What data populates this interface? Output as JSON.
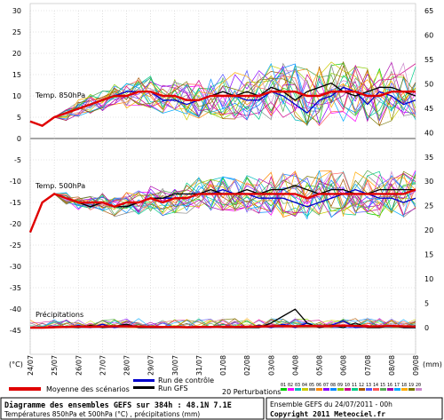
{
  "chart_data": {
    "type": "line",
    "title": "Diagramme des ensembles GEFS sur 384h : 48.1N 7.1E",
    "subtitle": "Températures 850hPa et 500hPa (°C) , précipitations (mm)",
    "ensemble_label": "Ensemble GEFS du 24/07/2011 - 00h",
    "copyright": "Copyright 2011 Meteociel.fr",
    "left_axis_label": "(°C)",
    "right_axis_label": "(mm)",
    "x_ticks": [
      "24/07",
      "25/07",
      "26/07",
      "27/07",
      "28/07",
      "29/07",
      "30/07",
      "31/07",
      "01/08",
      "02/08",
      "03/08",
      "04/08",
      "05/08",
      "06/08",
      "07/08",
      "08/08",
      "09/08"
    ],
    "left_ticks": [
      30,
      25,
      20,
      15,
      10,
      5,
      0,
      -5,
      -10,
      -15,
      -20,
      -25,
      -30,
      -35,
      -40,
      -45
    ],
    "right_ticks": [
      65,
      60,
      55,
      50,
      45,
      40,
      35,
      30,
      25,
      20,
      15,
      10,
      5,
      0
    ],
    "panels": [
      {
        "label": "Temp. 850hPa"
      },
      {
        "label": "Temp. 500hPa"
      },
      {
        "label": "Précipitations"
      }
    ],
    "legend": {
      "mean": "Moyenne des scénarios",
      "control": "Run de contrôle",
      "gfs": "Run GFS",
      "perturbations": "20 Perturbations",
      "pert_numbers": [
        "01",
        "02",
        "03",
        "04",
        "05",
        "06",
        "07",
        "08",
        "09",
        "10",
        "11",
        "12",
        "13",
        "14",
        "15",
        "16",
        "17",
        "18",
        "19",
        "20"
      ]
    },
    "series_colors": {
      "mean": "#e00000",
      "control": "#0000cc",
      "gfs": "#000000",
      "perturbations": [
        "#00cc00",
        "#ff00ff",
        "#00bbbb",
        "#cccc00",
        "#888888",
        "#ff8800",
        "#8800ff",
        "#0088ff",
        "#88cc00",
        "#cc0088",
        "#00cc88",
        "#aa5500",
        "#5555ff",
        "#ff5555",
        "#55aa55",
        "#aa00aa",
        "#00aaff",
        "#ffaa00",
        "#777700",
        "#cc88cc"
      ]
    },
    "x": [
      0,
      0.5,
      1,
      1.5,
      2,
      2.5,
      3,
      3.5,
      4,
      4.5,
      5,
      5.5,
      6,
      6.5,
      7,
      7.5,
      8,
      8.5,
      9,
      9.5,
      10,
      10.5,
      11,
      11.5,
      12,
      12.5,
      13,
      13.5,
      14,
      14.5,
      15,
      15.5,
      16
    ],
    "t850": {
      "mean": [
        4,
        3,
        5,
        6,
        7,
        8,
        9,
        10,
        10,
        11,
        11,
        10,
        10,
        9,
        9,
        10,
        10,
        10,
        10,
        10,
        11,
        11,
        11,
        10,
        10,
        11,
        11,
        11,
        10,
        10,
        11,
        11,
        11
      ],
      "control": [
        4,
        3,
        5,
        6,
        7,
        8,
        9,
        10,
        11,
        11,
        11,
        9,
        9,
        8,
        9,
        10,
        10,
        10,
        9,
        9,
        11,
        10,
        8,
        6,
        9,
        10,
        12,
        11,
        8,
        11,
        10,
        8,
        9
      ],
      "gfs": [
        4,
        3,
        5,
        6,
        7,
        8,
        9,
        10,
        10,
        11,
        11,
        10,
        10,
        9,
        9,
        10,
        11,
        10,
        11,
        10,
        12,
        11,
        9,
        11,
        12,
        13,
        11,
        10,
        11,
        12,
        12,
        11,
        10
      ]
    },
    "t500": {
      "mean": [
        -22,
        -15,
        -13,
        -14,
        -15,
        -15,
        -15,
        -16,
        -15,
        -15,
        -14,
        -15,
        -14,
        -14,
        -13,
        -13,
        -13,
        -13,
        -13,
        -13,
        -13,
        -13,
        -13,
        -14,
        -13,
        -13,
        -13,
        -13,
        -13,
        -13,
        -13,
        -13,
        -12
      ],
      "control": [
        -22,
        -15,
        -13,
        -14,
        -15,
        -16,
        -15,
        -16,
        -16,
        -15,
        -14,
        -14,
        -14,
        -14,
        -13,
        -13,
        -12,
        -13,
        -13,
        -14,
        -14,
        -14,
        -15,
        -16,
        -15,
        -14,
        -13,
        -12,
        -13,
        -14,
        -14,
        -15,
        -14
      ],
      "gfs": [
        -22,
        -15,
        -13,
        -14,
        -15,
        -16,
        -15,
        -16,
        -16,
        -15,
        -14,
        -14,
        -13,
        -13,
        -13,
        -12,
        -13,
        -13,
        -12,
        -13,
        -12,
        -12,
        -11,
        -12,
        -13,
        -12,
        -12,
        -13,
        -13,
        -12,
        -12,
        -12,
        -12
      ]
    },
    "precip": {
      "mean": [
        0,
        0,
        0.2,
        0.3,
        0.5,
        0.4,
        0.5,
        0.6,
        0.6,
        0.5,
        0.4,
        0.3,
        0.3,
        0.2,
        0.3,
        0.3,
        0.4,
        0.3,
        0.4,
        0.5,
        0.6,
        0.7,
        0.6,
        0.8,
        0.6,
        0.7,
        0.9,
        0.8,
        0.5,
        0.6,
        0.7,
        0.6,
        0.5
      ],
      "control": [
        0,
        0,
        0.5,
        0,
        1,
        0,
        1.5,
        0,
        1,
        0.5,
        0,
        0,
        0.5,
        0,
        0,
        0,
        0.5,
        0,
        0,
        1,
        0,
        1.5,
        0,
        2,
        0,
        1,
        3,
        0,
        0.5,
        0,
        1,
        0,
        0
      ],
      "gfs": [
        0,
        0,
        0,
        0.5,
        0,
        1,
        0,
        0.5,
        1.5,
        0,
        0,
        0,
        0,
        0,
        0,
        0.5,
        0,
        0,
        0,
        0,
        2,
        5,
        8,
        2,
        0,
        1,
        0,
        2,
        0,
        0,
        1,
        0,
        0
      ]
    }
  }
}
